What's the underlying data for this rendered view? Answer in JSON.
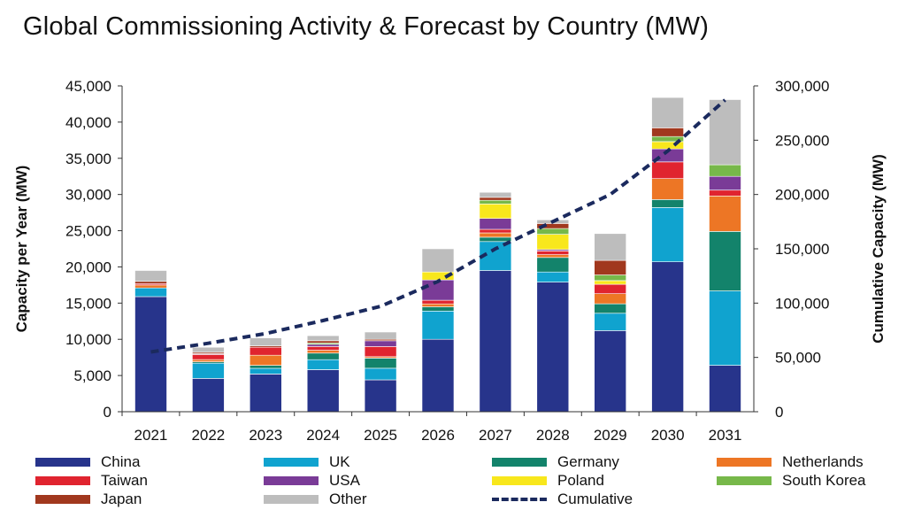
{
  "header": {
    "title": "Global Commissioning Activity & Forecast by Country (MW)"
  },
  "chart_data": {
    "type": "bar",
    "stacked": true,
    "title": "Global Commissioning Activity & Forecast by Country (MW)",
    "xlabel": "",
    "ylabel": "Capacity per Year (MW)",
    "y2label": "Cumulative Capacity (MW)",
    "ylim": [
      0,
      45000
    ],
    "y2lim": [
      0,
      300000
    ],
    "yticks": [
      "0",
      "5,000",
      "10,000",
      "15,000",
      "20,000",
      "25,000",
      "30,000",
      "35,000",
      "40,000",
      "45,000"
    ],
    "y2ticks": [
      "0",
      "50,000",
      "100,000",
      "150,000",
      "200,000",
      "250,000",
      "300,000"
    ],
    "categories": [
      "2021",
      "2022",
      "2023",
      "2024",
      "2025",
      "2026",
      "2027",
      "2028",
      "2029",
      "2030",
      "2031"
    ],
    "legend_position": "bottom",
    "grid": false,
    "series": [
      {
        "name": "China",
        "color": "#27348b",
        "values": [
          15900,
          4600,
          5200,
          5800,
          4400,
          10000,
          19500,
          17900,
          11200,
          20700,
          6400
        ]
      },
      {
        "name": "UK",
        "color": "#10a3cf",
        "values": [
          1200,
          2100,
          800,
          1400,
          1600,
          3900,
          4000,
          1400,
          2400,
          7500,
          10300
        ]
      },
      {
        "name": "Germany",
        "color": "#13836b",
        "values": [
          0,
          200,
          400,
          900,
          1400,
          600,
          600,
          2000,
          1300,
          1100,
          8200
        ]
      },
      {
        "name": "Netherlands",
        "color": "#ed7625",
        "values": [
          400,
          300,
          1400,
          400,
          200,
          400,
          600,
          400,
          1400,
          2900,
          4900
        ]
      },
      {
        "name": "Taiwan",
        "color": "#e0242f",
        "values": [
          200,
          700,
          1100,
          500,
          1400,
          500,
          500,
          500,
          1300,
          2300,
          800
        ]
      },
      {
        "name": "USA",
        "color": "#7a3b97",
        "values": [
          0,
          100,
          0,
          300,
          800,
          2800,
          1500,
          200,
          0,
          1800,
          1900
        ]
      },
      {
        "name": "Poland",
        "color": "#f8e71c",
        "values": [
          0,
          0,
          0,
          0,
          0,
          1100,
          2000,
          2100,
          500,
          1000,
          0
        ]
      },
      {
        "name": "South Korea",
        "color": "#77b84a",
        "values": [
          0,
          0,
          0,
          200,
          0,
          0,
          500,
          800,
          800,
          700,
          1600
        ]
      },
      {
        "name": "Japan",
        "color": "#a1381e",
        "values": [
          300,
          200,
          200,
          300,
          200,
          0,
          400,
          700,
          2000,
          1200,
          0
        ]
      },
      {
        "name": "Other",
        "color": "#bdbdbd",
        "values": [
          1500,
          700,
          1100,
          700,
          1000,
          3200,
          700,
          500,
          3700,
          4200,
          9000
        ]
      }
    ],
    "line_series": {
      "name": "Cumulative",
      "color": "#1b2a5e",
      "style": "dashed",
      "axis": "right",
      "values": [
        55000,
        63000,
        72000,
        84000,
        97000,
        120000,
        150000,
        175000,
        200000,
        240000,
        287000
      ]
    }
  }
}
